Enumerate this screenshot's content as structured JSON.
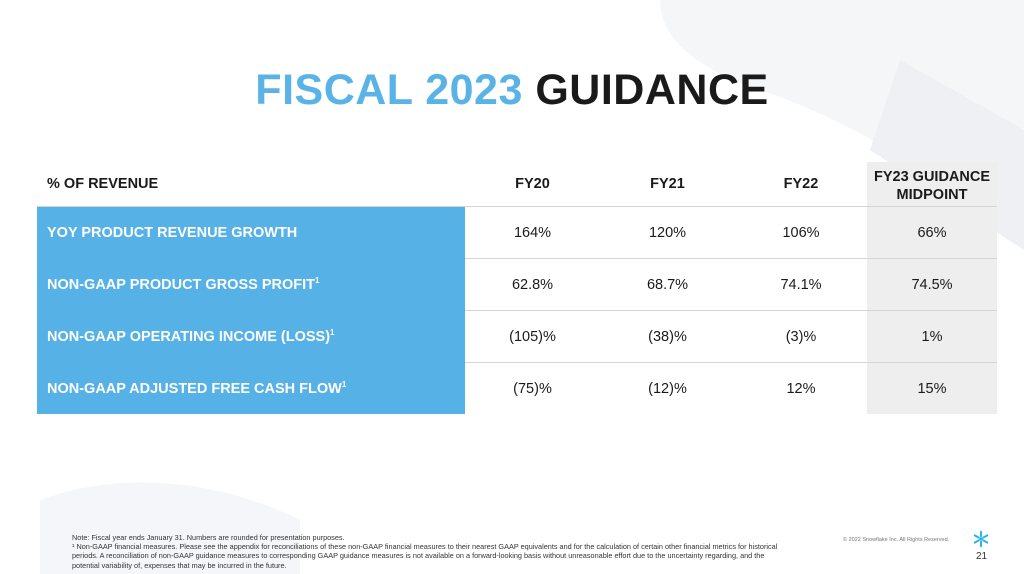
{
  "title": {
    "accent": "FISCAL 2023",
    "rest": "GUIDANCE"
  },
  "table": {
    "headers": [
      "% OF REVENUE",
      "FY20",
      "FY21",
      "FY22",
      "FY23 GUIDANCE",
      "MIDPOINT"
    ],
    "rows": [
      {
        "label": "YOY PRODUCT REVENUE GROWTH",
        "sup": "",
        "fy20": "164%",
        "fy21": "120%",
        "fy22": "106%",
        "fy23": "66%"
      },
      {
        "label": "NON-GAAP PRODUCT GROSS PROFIT",
        "sup": "1",
        "fy20": "62.8%",
        "fy21": "68.7%",
        "fy22": "74.1%",
        "fy23": "74.5%"
      },
      {
        "label": "NON-GAAP OPERATING INCOME (LOSS)",
        "sup": "1",
        "fy20": "(105)%",
        "fy21": "(38)%",
        "fy22": "(3)%",
        "fy23": "1%"
      },
      {
        "label": "NON-GAAP ADJUSTED FREE CASH FLOW",
        "sup": "1",
        "fy20": "(75)%",
        "fy21": "(12)%",
        "fy22": "12%",
        "fy23": "15%"
      }
    ]
  },
  "notes": {
    "line1": "Note: Fiscal year ends January 31. Numbers are rounded for presentation purposes.",
    "line2": "¹ Non-GAAP financial measures. Please see the appendix for reconciliations of these non-GAAP financial measures to their nearest GAAP equivalents and for the calculation of certain other financial metrics for historical periods. A reconciliation of non-GAAP guidance measures to corresponding GAAP guidance measures is not available on a forward-looking basis without unreasonable effort due to the uncertainty regarding, and the potential variability of, expenses that may be incurred in the future."
  },
  "footer": {
    "copyright": "© 2022 Snowflake Inc. All Rights Reserved.",
    "page": "21",
    "logo_icon": "snowflake-icon"
  },
  "colors": {
    "accent": "#5ab3e6",
    "label_fill": "#56b1e6",
    "midpoint_fill": "#eeeeee"
  }
}
